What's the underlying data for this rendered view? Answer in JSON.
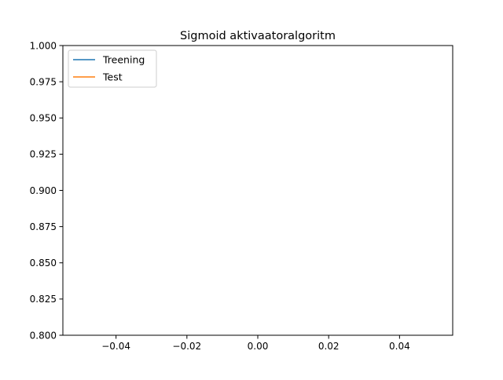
{
  "chart_data": {
    "type": "line",
    "title": "Sigmoid aktivaatoralgoritm",
    "xlabel": "",
    "ylabel": "",
    "xlim": [
      -0.055,
      0.055
    ],
    "ylim": [
      0.8,
      1.0
    ],
    "x_ticks": [
      -0.04,
      -0.02,
      0.0,
      0.02,
      0.04
    ],
    "x_tick_labels": [
      "−0.04",
      "−0.02",
      "0.00",
      "0.02",
      "0.04"
    ],
    "y_ticks": [
      0.8,
      0.825,
      0.85,
      0.875,
      0.9,
      0.925,
      0.95,
      0.975,
      1.0
    ],
    "y_tick_labels": [
      "0.800",
      "0.825",
      "0.850",
      "0.875",
      "0.900",
      "0.925",
      "0.950",
      "0.975",
      "1.000"
    ],
    "grid": false,
    "legend_position": "top-left",
    "series": [
      {
        "name": "Treening",
        "color": "#1f77b4",
        "x": [],
        "y": []
      },
      {
        "name": "Test",
        "color": "#ff7f0e",
        "x": [],
        "y": []
      }
    ]
  }
}
